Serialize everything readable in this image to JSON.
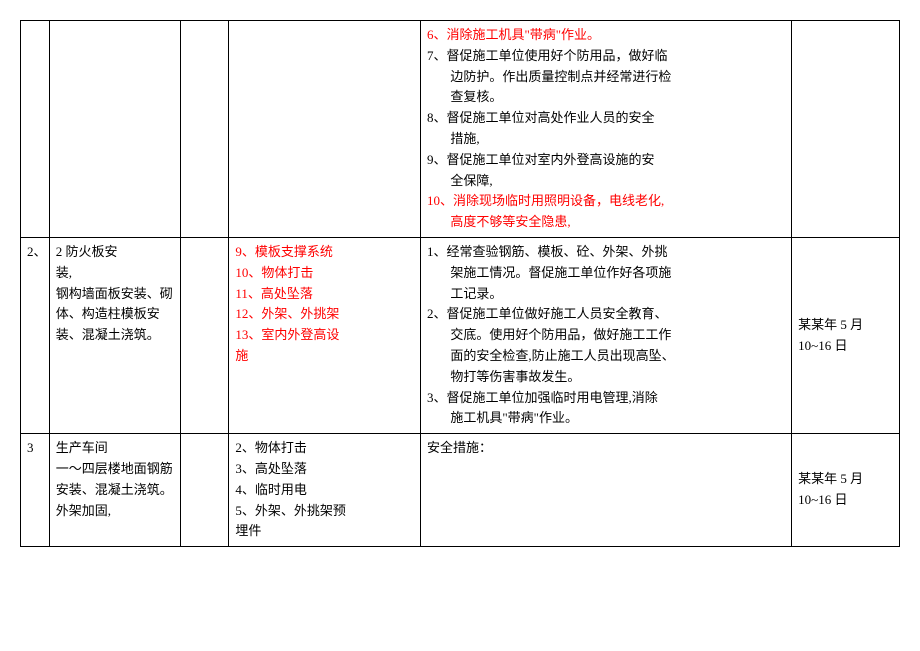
{
  "colors": {
    "red": "#ff0000",
    "black": "#000000",
    "border": "#000000",
    "background": "#ffffff"
  },
  "fontsize": 13,
  "rows": [
    {
      "idx": "",
      "content": "",
      "hazards": [],
      "measures": [
        {
          "text": "6、消除施工机具\"带病\"作业。",
          "color": "red"
        },
        {
          "text": "7、督促施工单位使用好个防用品，做好临边防护。作出质量控制点并经常进行检查复核。",
          "color": "black"
        },
        {
          "text": "8、督促施工单位对高处作业人员的安全措施,",
          "color": "black"
        },
        {
          "text": "9、督促施工单位对室内外登高设施的安全保障,",
          "color": "black"
        },
        {
          "text": "10、消除现场临时用照明设备，电线老化,高度不够等安全隐患,",
          "color": "red"
        }
      ],
      "date": ""
    },
    {
      "idx": "2、",
      "content": "2 防火板安装,\n钢构墙面板安装、砌体、构造柱模板安装、混凝土浇筑。",
      "hazards": [
        {
          "text": "9、模板支撑系统",
          "color": "red"
        },
        {
          "text": "10、物体打击",
          "color": "red"
        },
        {
          "text": "11、高处坠落",
          "color": "red"
        },
        {
          "text": "12、外架、外挑架",
          "color": "red"
        },
        {
          "text": "13、室内外登高设施",
          "color": "red"
        }
      ],
      "measures": [
        {
          "text": "1、经常查验钢筋、模板、砼、外架、外挑架施工情况。督促施工单位作好各项施工记录。",
          "color": "black"
        },
        {
          "text": "2、督促施工单位做好施工人员安全教育、交底。使用好个防用品，做好施工工作面的安全检查,防止施工人员出现高坠、物打等伤害事故发生。",
          "color": "black"
        },
        {
          "text": "3、督促施工单位加强临时用电管理,消除施工机具\"带病\"作业。",
          "color": "black"
        }
      ],
      "date": "某某年 5 月10~16 日"
    },
    {
      "idx": "3",
      "content": "生产车间一～四层楼地面钢筋安装、混凝土浇筑。外架加固,",
      "hazards": [
        {
          "text": "2、物体打击",
          "color": "black"
        },
        {
          "text": "3、高处坠落",
          "color": "black"
        },
        {
          "text": "4、临时用电",
          "color": "black"
        },
        {
          "text": "5、外架、外挑架预埋件",
          "color": "black"
        }
      ],
      "measures": [
        {
          "text": "安全措施：",
          "color": "black"
        }
      ],
      "date": "某某年 5 月10~16 日"
    }
  ]
}
